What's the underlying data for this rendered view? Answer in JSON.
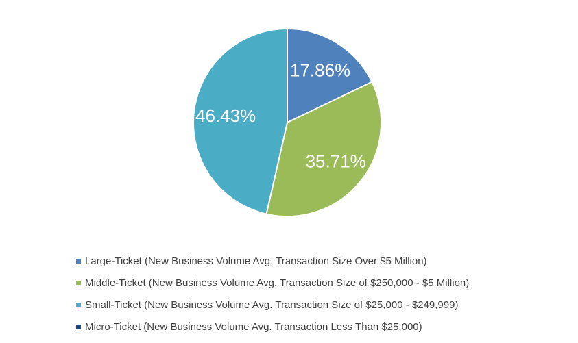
{
  "chart_data": {
    "type": "pie",
    "title": "",
    "slices": [
      {
        "name": "Large-Ticket (New Business Volume Avg. Transaction Size Over $5 Million)",
        "value": 17.86,
        "label": "17.86%",
        "color": "#4F81BD"
      },
      {
        "name": "Middle-Ticket (New Business Volume Avg. Transaction Size of $250,000 - $5 Million)",
        "value": 35.71,
        "label": "35.71%",
        "color": "#9BBB59"
      },
      {
        "name": "Small-Ticket (New Business Volume Avg. Transaction Size of $25,000 - $249,999)",
        "value": 46.43,
        "label": "46.43%",
        "color": "#4BACC6"
      },
      {
        "name": "Micro-Ticket (New Business Volume Avg. Transaction Less Than $25,000)",
        "value": 0,
        "label": "",
        "color": "#1F497D"
      }
    ],
    "legend_position": "bottom"
  }
}
